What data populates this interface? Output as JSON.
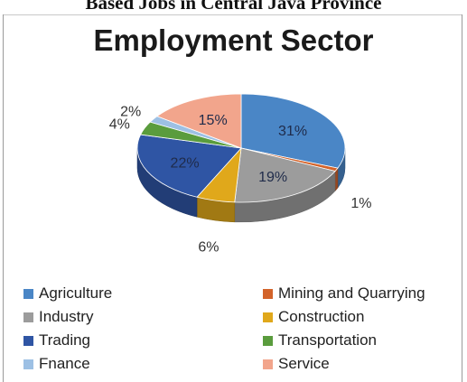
{
  "caption": "Based Jobs in Central Java Province",
  "chart_data": {
    "type": "pie",
    "title": "Employment Sector",
    "legend_position": "bottom",
    "slices": [
      {
        "label": "Agriculture",
        "value": 31,
        "display": "31%",
        "color": "#4a86c6"
      },
      {
        "label": "Mining and Quarrying",
        "value": 1,
        "display": "1%",
        "color": "#d3632a"
      },
      {
        "label": "Industry",
        "value": 19,
        "display": "19%",
        "color": "#9c9c9c"
      },
      {
        "label": "Construction",
        "value": 6,
        "display": "6%",
        "color": "#e0a81b"
      },
      {
        "label": "Trading",
        "value": 22,
        "display": "22%",
        "color": "#2f55a4"
      },
      {
        "label": "Transportation",
        "value": 4,
        "display": "4%",
        "color": "#5a9c3d"
      },
      {
        "label": "Fnance",
        "value": 2,
        "display": "2%",
        "color": "#9dc0e4"
      },
      {
        "label": "Service",
        "value": 15,
        "display": "15%",
        "color": "#f2a58c"
      }
    ]
  }
}
